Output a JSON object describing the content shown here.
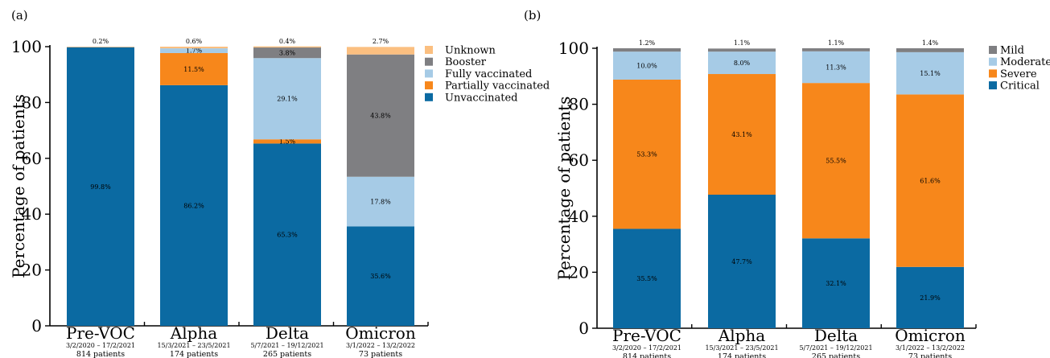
{
  "colors": {
    "unvaccinated": "#0b6aa2",
    "partially_vaccinated": "#f7871b",
    "fully_vaccinated": "#a6cbe6",
    "booster": "#7f7f82",
    "unknown": "#fbbf80",
    "critical": "#0b6aa2",
    "severe": "#f7871b",
    "moderate": "#a6cbe6",
    "mild": "#7f7f82"
  },
  "chart_data": [
    {
      "panel_label": "(a)",
      "type": "bar",
      "stacked": true,
      "ylabel": "Percentage of patients",
      "ylim": [
        0,
        100
      ],
      "yticks": [
        "0",
        "20",
        "40",
        "60",
        "80",
        "100"
      ],
      "legend_position": "top-right",
      "categories": [
        {
          "name": "Pre-VOC",
          "dates": "3/2/2020 – 17/2/2021",
          "patients": "814 patients"
        },
        {
          "name": "Alpha",
          "dates": "15/3/2021 – 23/5/2021",
          "patients": "174 patients"
        },
        {
          "name": "Delta",
          "dates": "5/7/2021 – 19/12/2021",
          "patients": "265 patients"
        },
        {
          "name": "Omicron",
          "dates": "3/1/2022 – 13/2/2022",
          "patients": "73 patients"
        }
      ],
      "series": [
        {
          "name": "Unvaccinated",
          "color_key": "unvaccinated",
          "values": [
            99.8,
            86.2,
            65.3,
            35.6
          ],
          "labels": [
            "99.8%",
            "86.2%",
            "65.3%",
            "35.6%"
          ]
        },
        {
          "name": "Partially vaccinated",
          "color_key": "partially_vaccinated",
          "values": [
            0,
            11.5,
            1.5,
            0
          ],
          "labels": [
            "",
            "11.5%",
            "1.5%",
            ""
          ]
        },
        {
          "name": "Fully vaccinated",
          "color_key": "fully_vaccinated",
          "values": [
            0,
            1.7,
            29.1,
            17.8
          ],
          "labels": [
            "",
            "1.7%",
            "29.1%",
            "17.8%"
          ]
        },
        {
          "name": "Booster",
          "color_key": "booster",
          "values": [
            0,
            0,
            3.8,
            43.8
          ],
          "labels": [
            "",
            "",
            "3.8%",
            "43.8%"
          ]
        },
        {
          "name": "Unknown",
          "color_key": "unknown",
          "values": [
            0.2,
            0.6,
            0.4,
            2.7
          ],
          "labels": [
            "0.2%",
            "0.6%",
            "0.4%",
            "2.7%"
          ]
        }
      ],
      "legend_order": [
        "Unknown",
        "Booster",
        "Fully vaccinated",
        "Partially vaccinated",
        "Unvaccinated"
      ]
    },
    {
      "panel_label": "(b)",
      "type": "bar",
      "stacked": true,
      "ylabel": "Percentage of patients",
      "ylim": [
        0,
        100
      ],
      "yticks": [
        "0",
        "20",
        "40",
        "60",
        "80",
        "100"
      ],
      "legend_position": "top-right",
      "categories": [
        {
          "name": "Pre-VOC",
          "dates": "3/2/2020 – 17/2/2021",
          "patients": "814 patients"
        },
        {
          "name": "Alpha",
          "dates": "15/3/2021 – 23/5/2021",
          "patients": "174 patients"
        },
        {
          "name": "Delta",
          "dates": "5/7/2021 – 19/12/2021",
          "patients": "265 patients"
        },
        {
          "name": "Omicron",
          "dates": "3/1/2022 – 13/2/2022",
          "patients": "73 patients"
        }
      ],
      "series": [
        {
          "name": "Critical",
          "color_key": "critical",
          "values": [
            35.5,
            47.7,
            32.1,
            21.9
          ],
          "labels": [
            "35.5%",
            "47.7%",
            "32.1%",
            "21.9%"
          ]
        },
        {
          "name": "Severe",
          "color_key": "severe",
          "values": [
            53.3,
            43.1,
            55.5,
            61.6
          ],
          "labels": [
            "53.3%",
            "43.1%",
            "55.5%",
            "61.6%"
          ]
        },
        {
          "name": "Moderate",
          "color_key": "moderate",
          "values": [
            10.0,
            8.0,
            11.3,
            15.1
          ],
          "labels": [
            "10.0%",
            "8.0%",
            "11.3%",
            "15.1%"
          ]
        },
        {
          "name": "Mild",
          "color_key": "mild",
          "values": [
            1.2,
            1.1,
            1.1,
            1.4
          ],
          "labels": [
            "1.2%",
            "1.1%",
            "1.1%",
            "1.4%"
          ]
        }
      ],
      "legend_order": [
        "Mild",
        "Moderate",
        "Severe",
        "Critical"
      ]
    }
  ]
}
